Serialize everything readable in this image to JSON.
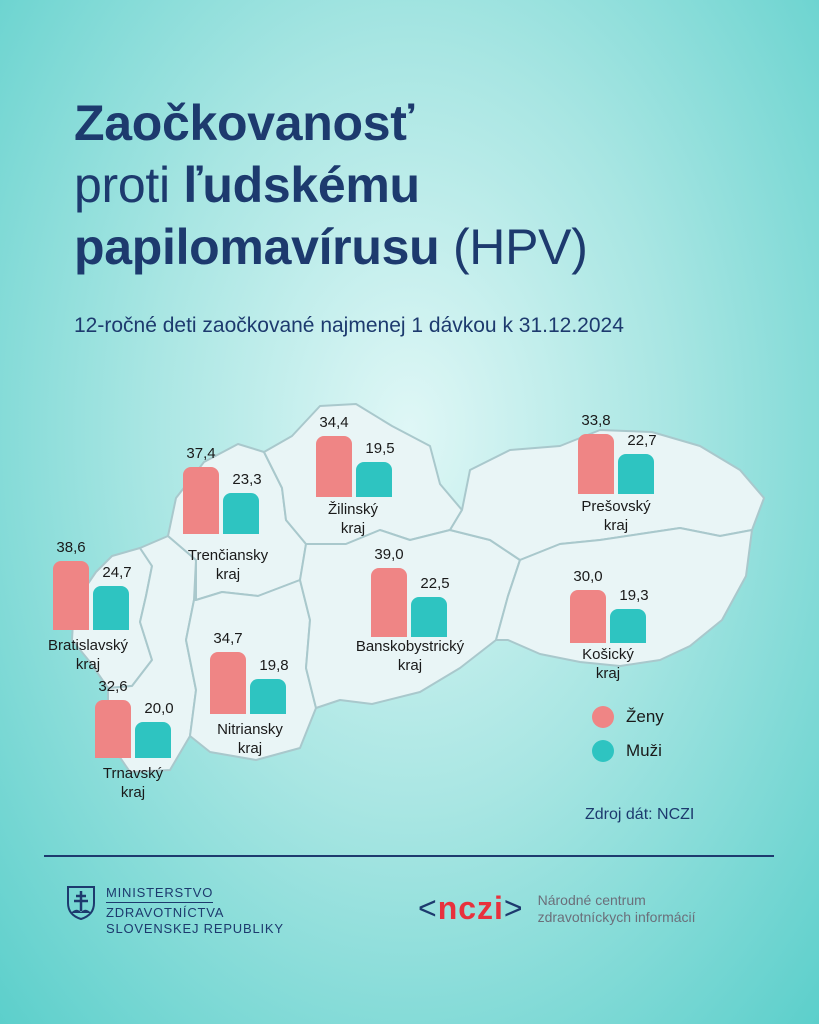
{
  "title": {
    "part1": "Zaočkovanosť",
    "part2": "proti",
    "part3": "ľudskému",
    "part4": "papilomavírusu",
    "part5": "(HPV)"
  },
  "subtitle": "12-ročné deti zaočkované najmenej 1 dávkou k 31.12.2024",
  "colors": {
    "women": "#ef8585",
    "men": "#2ec4c1",
    "map_fill": "#e9f5f6",
    "map_stroke": "#a9c8cc",
    "text_dark": "#1d3a6e"
  },
  "chart_data": {
    "type": "bar",
    "categories": [
      {
        "name": "Bratislavský",
        "suffix": "kraj"
      },
      {
        "name": "Trnavský",
        "suffix": "kraj"
      },
      {
        "name": "Trenčiansky",
        "suffix": "kraj"
      },
      {
        "name": "Nitriansky",
        "suffix": "kraj"
      },
      {
        "name": "Žilinský",
        "suffix": "kraj"
      },
      {
        "name": "Banskobystrický",
        "suffix": "kraj"
      },
      {
        "name": "Prešovský",
        "suffix": "kraj"
      },
      {
        "name": "Košický",
        "suffix": "kraj"
      }
    ],
    "series": [
      {
        "name": "Ženy",
        "values": [
          38.6,
          32.6,
          37.4,
          34.7,
          34.4,
          39.0,
          33.8,
          30.0
        ],
        "labels": [
          "38,6",
          "32,6",
          "37,4",
          "34,7",
          "34,4",
          "39,0",
          "33,8",
          "30,0"
        ]
      },
      {
        "name": "Muži",
        "values": [
          24.7,
          20.0,
          23.3,
          19.8,
          19.5,
          22.5,
          22.7,
          19.3
        ],
        "labels": [
          "24,7",
          "20,0",
          "23,3",
          "19,8",
          "19,5",
          "22,5",
          "22,7",
          "19,3"
        ]
      }
    ],
    "legend_position": "bottom-right"
  },
  "legend": {
    "women_label": "Ženy",
    "men_label": "Muži"
  },
  "source": "Zdroj dát: NCZI",
  "footer": {
    "ministry": {
      "line1": "MINISTERSTVO",
      "line2": "ZDRAVOTNÍCTVA",
      "line3": "SLOVENSKEJ REPUBLIKY"
    },
    "nczi": {
      "logo": "nczi",
      "line1": "Národné centrum",
      "line2": "zdravotníckych informácií"
    }
  }
}
